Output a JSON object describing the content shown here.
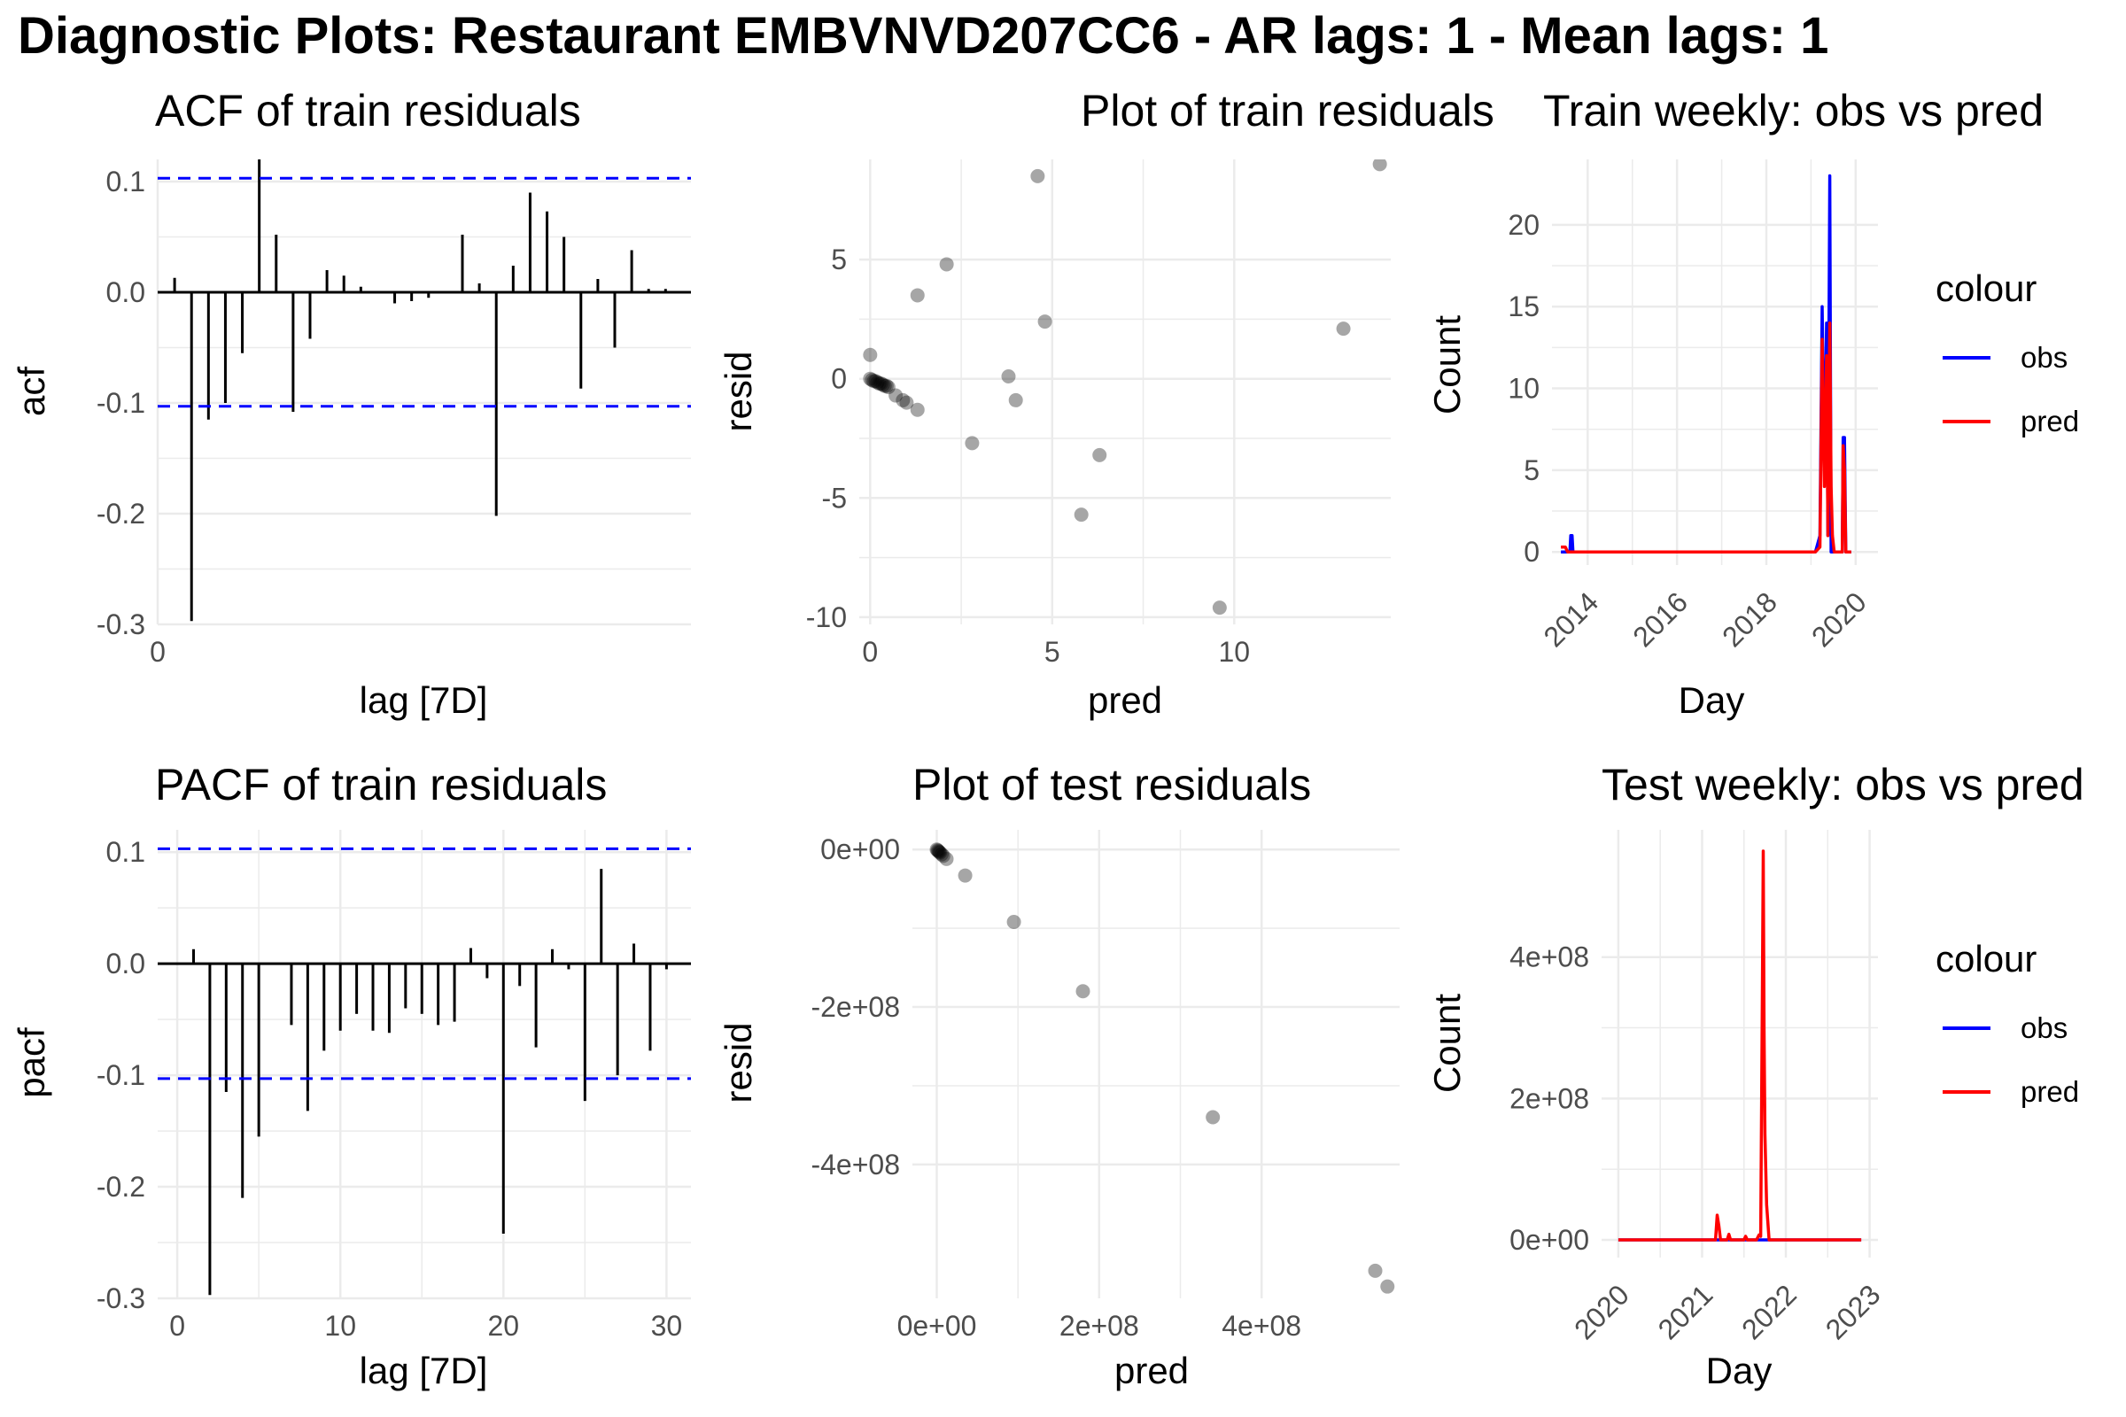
{
  "title": "Diagnostic Plots: Restaurant EMBVNVD207CC6 - AR lags: 1 - Mean lags: 1",
  "colors": {
    "obs": "#0000ff",
    "pred": "#ff0000",
    "ci": "#0000ff",
    "grid": "#ebebeb"
  },
  "chart_data": [
    {
      "id": "acf",
      "type": "bar",
      "title": "ACF of train residuals",
      "xlabel": "lag [7D]",
      "ylabel": "acf",
      "xlim": [
        0,
        31.5
      ],
      "ylim": [
        -0.3,
        0.12
      ],
      "xticks": [
        0
      ],
      "yticks": [
        -0.3,
        -0.2,
        -0.1,
        0.0,
        0.1
      ],
      "ytick_labels": [
        "-0.3",
        "-0.2",
        "-0.1",
        "0.0",
        "0.1"
      ],
      "ci": 0.103,
      "lags": [
        1,
        2,
        3,
        4,
        5,
        6,
        7,
        8,
        9,
        10,
        11,
        12,
        13,
        14,
        15,
        16,
        17,
        18,
        19,
        20,
        21,
        22,
        23,
        24,
        25,
        26,
        27,
        28,
        29,
        30
      ],
      "values": [
        0.013,
        -0.297,
        -0.115,
        -0.1,
        -0.055,
        0.124,
        0.052,
        -0.108,
        -0.042,
        0.02,
        0.015,
        0.005,
        0.0,
        -0.01,
        -0.008,
        -0.005,
        0.0,
        0.052,
        0.008,
        -0.202,
        0.024,
        0.09,
        0.073,
        0.05,
        -0.087,
        0.012,
        -0.05,
        0.038,
        0.003,
        0.003
      ]
    },
    {
      "id": "resid-train",
      "type": "scatter",
      "title": "Plot of train residuals",
      "xlabel": "pred",
      "ylabel": "resid",
      "xlim": [
        -0.3,
        14.3
      ],
      "ylim": [
        -10.3,
        9.2
      ],
      "xticks": [
        0,
        5,
        10
      ],
      "xtick_labels": [
        "0",
        "5",
        "10"
      ],
      "yticks": [
        -10,
        -5,
        0,
        5
      ],
      "ytick_labels": [
        "-10",
        "-5",
        "0",
        "5"
      ],
      "points": [
        [
          0,
          1
        ],
        [
          0,
          0
        ],
        [
          0.05,
          -0.05
        ],
        [
          0.1,
          -0.1
        ],
        [
          0.15,
          -0.1
        ],
        [
          0.2,
          -0.15
        ],
        [
          0.25,
          -0.2
        ],
        [
          0.3,
          -0.2
        ],
        [
          0.35,
          -0.25
        ],
        [
          0.4,
          -0.3
        ],
        [
          0.45,
          -0.3
        ],
        [
          0.5,
          -0.35
        ],
        [
          0.7,
          -0.7
        ],
        [
          0.9,
          -0.9
        ],
        [
          1.0,
          -1.0
        ],
        [
          1.3,
          -1.3
        ],
        [
          1.3,
          3.5
        ],
        [
          2.1,
          4.8
        ],
        [
          2.8,
          -2.7
        ],
        [
          3.8,
          0.1
        ],
        [
          4.0,
          -0.9
        ],
        [
          4.6,
          8.5
        ],
        [
          4.8,
          2.4
        ],
        [
          5.8,
          -5.7
        ],
        [
          6.3,
          -3.2
        ],
        [
          9.6,
          -9.6
        ],
        [
          13.0,
          2.1
        ],
        [
          14.0,
          9.0
        ]
      ]
    },
    {
      "id": "train-weekly",
      "type": "line",
      "title": "Train weekly: obs vs pred",
      "xlabel": "Day",
      "ylabel": "Count",
      "xlim": [
        2013.2,
        2020.5
      ],
      "ylim": [
        -0.8,
        24
      ],
      "xticks": [
        2014,
        2016,
        2018,
        2020
      ],
      "xtick_labels": [
        "2014",
        "2016",
        "2018",
        "2020"
      ],
      "yticks": [
        0,
        5,
        10,
        15,
        20
      ],
      "ytick_labels": [
        "0",
        "5",
        "10",
        "15",
        "20"
      ],
      "legend_title": "colour",
      "legend_position": "right",
      "series": [
        {
          "name": "obs",
          "x": [
            2013.4,
            2013.6,
            2013.62,
            2013.65,
            2013.67,
            2019.1,
            2019.2,
            2019.25,
            2019.3,
            2019.35,
            2019.38,
            2019.42,
            2019.45,
            2019.48,
            2019.52,
            2019.55,
            2019.6,
            2019.65,
            2019.7,
            2019.72,
            2019.75,
            2019.78,
            2019.82,
            2019.85,
            2019.88,
            2019.9
          ],
          "y": [
            0,
            0,
            1,
            1,
            0,
            0,
            1,
            15,
            5,
            14,
            1,
            23,
            0,
            0,
            0,
            0,
            0,
            0,
            0,
            7,
            7,
            0,
            0,
            0,
            0,
            0
          ]
        },
        {
          "name": "pred",
          "x": [
            2013.4,
            2013.5,
            2013.55,
            2019.1,
            2019.2,
            2019.25,
            2019.3,
            2019.35,
            2019.38,
            2019.42,
            2019.45,
            2019.48,
            2019.52,
            2019.55,
            2019.6,
            2019.65,
            2019.7,
            2019.72,
            2019.75,
            2019.78,
            2019.82,
            2019.85,
            2019.88,
            2019.9
          ],
          "y": [
            0.3,
            0.3,
            0,
            0,
            0.3,
            13,
            4,
            12,
            1,
            14,
            4,
            1,
            0,
            0,
            0,
            0,
            0,
            6.5,
            5,
            0,
            0,
            0,
            0,
            0
          ]
        }
      ]
    },
    {
      "id": "pacf",
      "type": "bar",
      "title": "PACF of train residuals",
      "xlabel": "lag [7D]",
      "ylabel": "pacf",
      "xlim": [
        -1.2,
        31.5
      ],
      "ylim": [
        -0.3,
        0.12
      ],
      "xticks": [
        0,
        10,
        20,
        30
      ],
      "xtick_labels": [
        "0",
        "10",
        "20",
        "30"
      ],
      "yticks": [
        -0.3,
        -0.2,
        -0.1,
        0.0,
        0.1
      ],
      "ytick_labels": [
        "-0.3",
        "-0.2",
        "-0.1",
        "0.0",
        "0.1"
      ],
      "ci": 0.103,
      "lags": [
        1,
        2,
        3,
        4,
        5,
        6,
        7,
        8,
        9,
        10,
        11,
        12,
        13,
        14,
        15,
        16,
        17,
        18,
        19,
        20,
        21,
        22,
        23,
        24,
        25,
        26,
        27,
        28,
        29,
        30
      ],
      "values": [
        0.013,
        -0.297,
        -0.115,
        -0.21,
        -0.155,
        0.0,
        -0.055,
        -0.132,
        -0.078,
        -0.06,
        -0.045,
        -0.06,
        -0.062,
        -0.04,
        -0.045,
        -0.055,
        -0.052,
        0.014,
        -0.013,
        -0.242,
        -0.02,
        -0.075,
        0.013,
        -0.005,
        -0.123,
        0.085,
        -0.1,
        0.018,
        -0.078,
        -0.005
      ]
    },
    {
      "id": "resid-test",
      "type": "scatter",
      "title": "Plot of test residuals",
      "xlabel": "pred",
      "ylabel": "resid",
      "xlim": [
        -30000000.0,
        570000000.0
      ],
      "ylim": [
        -570000000.0,
        25000000.0
      ],
      "xticks": [
        0,
        200000000.0,
        400000000.0
      ],
      "xtick_labels": [
        "0e+00",
        "2e+08",
        "4e+08"
      ],
      "yticks": [
        0,
        -200000000.0,
        -400000000.0
      ],
      "ytick_labels": [
        "0e+00",
        "-2e+08",
        "-4e+08"
      ],
      "points": [
        [
          0,
          0
        ],
        [
          1000000.0,
          -1000000.0
        ],
        [
          2000000.0,
          -2000000.0
        ],
        [
          3000000.0,
          -3000000.0
        ],
        [
          4000000.0,
          -4000000.0
        ],
        [
          6000000.0,
          -6000000.0
        ],
        [
          8000000.0,
          -8000000.0
        ],
        [
          12000000.0,
          -12000000.0
        ],
        [
          35000000.0,
          -33000000.0
        ],
        [
          95000000.0,
          -92000000.0
        ],
        [
          180000000.0,
          -180000000.0
        ],
        [
          340000000.0,
          -340000000.0
        ],
        [
          540000000.0,
          -535000000.0
        ],
        [
          555000000.0,
          -555000000.0
        ]
      ]
    },
    {
      "id": "test-weekly",
      "type": "line",
      "title": "Test weekly: obs vs pred",
      "xlabel": "Day",
      "ylabel": "Count",
      "xlim": [
        2019.8,
        2023.1
      ],
      "ylim": [
        -25000000.0,
        580000000.0
      ],
      "xticks": [
        2020,
        2021,
        2022,
        2023
      ],
      "xtick_labels": [
        "2020",
        "2021",
        "2022",
        "2023"
      ],
      "yticks": [
        0,
        200000000.0,
        400000000.0
      ],
      "ytick_labels": [
        "0e+00",
        "2e+08",
        "4e+08"
      ],
      "legend_title": "colour",
      "legend_position": "right",
      "series": [
        {
          "name": "obs",
          "x": [
            2020.0,
            2022.9
          ],
          "y": [
            0,
            0
          ]
        },
        {
          "name": "pred",
          "x": [
            2020.0,
            2021.16,
            2021.18,
            2021.2,
            2021.22,
            2021.3,
            2021.32,
            2021.34,
            2021.5,
            2021.52,
            2021.54,
            2021.65,
            2021.68,
            2021.7,
            2021.72,
            2021.73,
            2021.74,
            2021.75,
            2021.77,
            2021.8,
            2021.85,
            2022.9
          ],
          "y": [
            0,
            0,
            35000000.0,
            20000000.0,
            0,
            0,
            8000000.0,
            0,
            0,
            5000000.0,
            0,
            0,
            7000000.0,
            5000000.0,
            350000000.0,
            550000000.0,
            300000000.0,
            150000000.0,
            50000000.0,
            0,
            0,
            0
          ]
        }
      ]
    }
  ]
}
